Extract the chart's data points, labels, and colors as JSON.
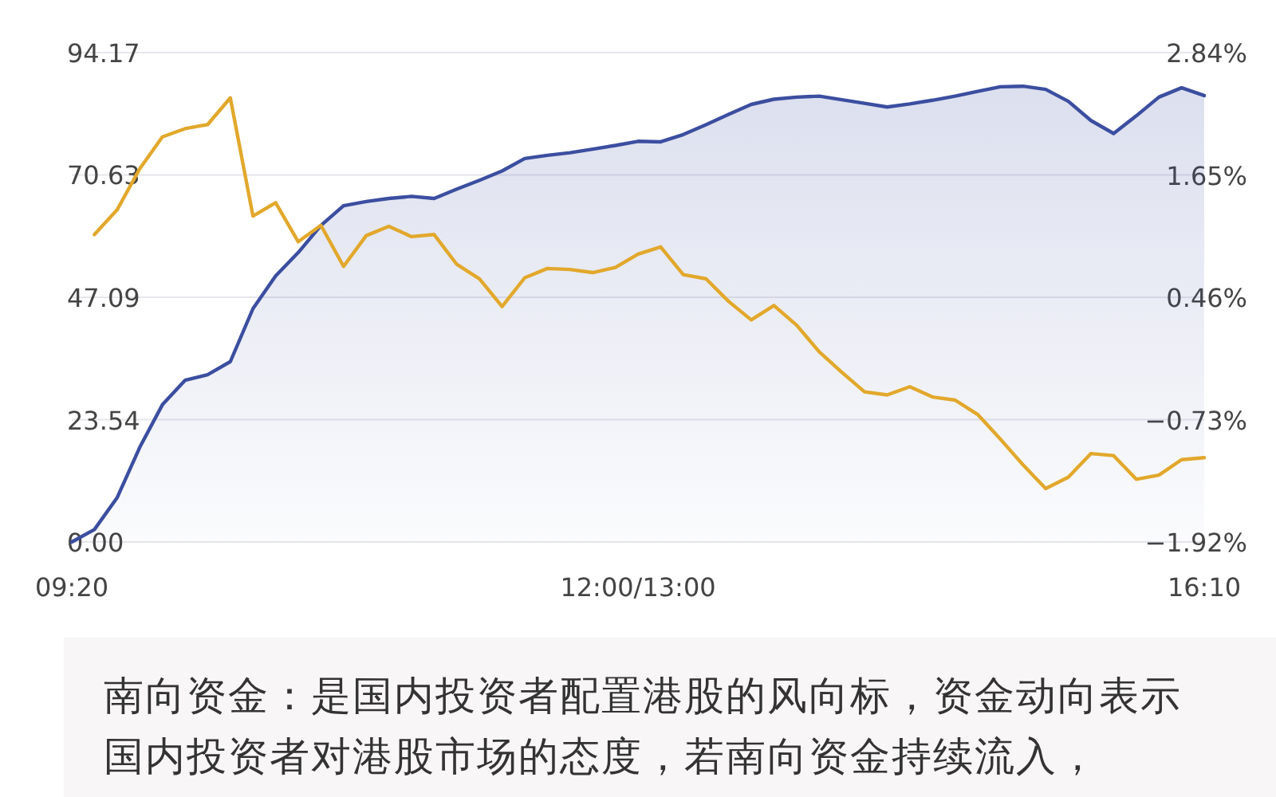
{
  "chart_data": {
    "type": "line",
    "categories": [
      "09:20",
      null,
      null,
      null,
      null,
      null,
      null,
      null,
      null,
      null,
      null,
      null,
      null,
      null,
      null,
      null,
      null,
      null,
      null,
      null,
      null,
      null,
      null,
      null,
      null,
      "12:00/13:00",
      null,
      null,
      null,
      null,
      null,
      null,
      null,
      null,
      null,
      null,
      null,
      null,
      null,
      null,
      null,
      null,
      null,
      null,
      null,
      null,
      null,
      null,
      null,
      null,
      "16:10"
    ],
    "ylim": [
      0,
      94.17
    ],
    "yticks": [
      {
        "value": 0,
        "label": "0.00"
      },
      23.54,
      47.09,
      70.63,
      94.17
    ],
    "y2lim": [
      -1.92,
      2.84
    ],
    "y2ticks": [
      {
        "value": -1.92,
        "label": "−1.92%"
      },
      {
        "value": -0.73,
        "label": "−0.73%"
      },
      {
        "value": 0.46,
        "label": "0.46%"
      },
      {
        "value": 1.65,
        "label": "1.65%"
      },
      {
        "value": 2.84,
        "label": "2.84%"
      }
    ],
    "grid": "y",
    "series": [
      {
        "type": "area",
        "color": "#3b4ea0",
        "values": [
          0,
          2.4,
          8.5,
          18.2,
          26.4,
          31.1,
          32.2,
          34.7,
          44.9,
          51.2,
          55.7,
          60.9,
          64.7,
          65.5,
          66.1,
          66.5,
          66.1,
          67.9,
          69.6,
          71.4,
          73.8,
          74.4,
          74.9,
          75.6,
          76.3,
          77.1,
          77.0,
          78.4,
          80.3,
          82.3,
          84.2,
          85.2,
          85.6,
          85.8,
          85.1,
          84.4,
          83.7,
          84.3,
          85.0,
          85.8,
          86.7,
          87.6,
          87.7,
          87.1,
          84.8,
          81.1,
          78.6,
          82.0,
          85.6,
          87.4,
          85.9
        ]
      },
      {
        "type": "line",
        "axis": "y2",
        "color": "#e2a82c",
        "values": [
          null,
          1.07,
          1.31,
          1.71,
          2.02,
          2.1,
          2.14,
          2.4,
          1.25,
          1.38,
          1.0,
          1.16,
          0.76,
          1.06,
          1.15,
          1.05,
          1.07,
          0.78,
          0.64,
          0.37,
          0.65,
          0.74,
          0.73,
          0.7,
          0.75,
          0.88,
          0.95,
          0.68,
          0.64,
          0.42,
          0.24,
          0.38,
          0.19,
          -0.07,
          -0.27,
          -0.46,
          -0.49,
          -0.41,
          -0.51,
          -0.54,
          -0.68,
          -0.92,
          -1.17,
          -1.4,
          -1.29,
          -1.06,
          -1.08,
          -1.31,
          -1.27,
          -1.12,
          -1.1
        ]
      }
    ],
    "annotations": [
      "南向资金：是国内投资者配置港股的风向标，资金动向表示国内投资者对港股市场的态度，若南向资金持续流入，"
    ]
  }
}
